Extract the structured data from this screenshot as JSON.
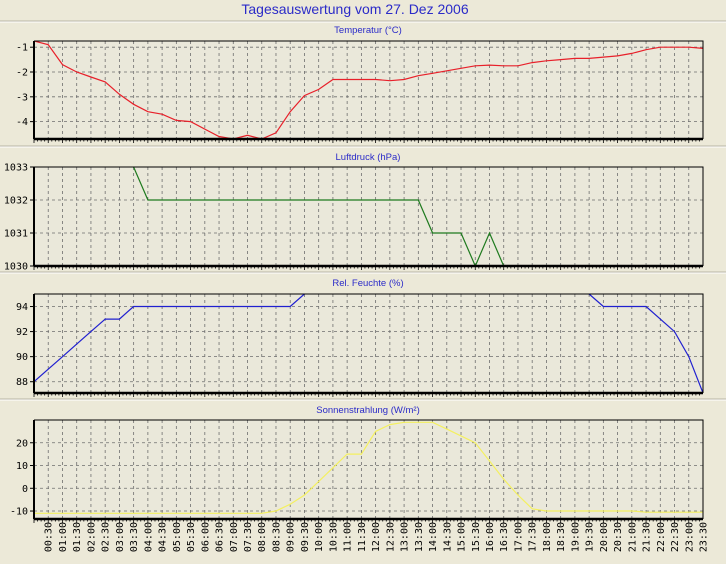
{
  "title": "Tagesauswertung vom 27. Dez 2006",
  "colors": {
    "background": "#ECE9D8",
    "plot_bg": "#EAE8DA",
    "title": "#2B2BC8"
  },
  "chart_data": {
    "x": [
      "00:00",
      "00:30",
      "01:00",
      "01:30",
      "02:00",
      "02:30",
      "03:00",
      "03:30",
      "04:00",
      "04:30",
      "05:00",
      "05:30",
      "06:00",
      "06:30",
      "07:00",
      "07:30",
      "08:00",
      "08:30",
      "09:00",
      "09:30",
      "10:00",
      "10:30",
      "11:00",
      "11:30",
      "12:00",
      "12:30",
      "13:00",
      "13:30",
      "14:00",
      "14:30",
      "15:00",
      "15:30",
      "16:00",
      "16:30",
      "17:00",
      "17:30",
      "18:00",
      "18:30",
      "19:00",
      "19:30",
      "20:00",
      "20:30",
      "21:00",
      "21:30",
      "22:00",
      "22:30",
      "23:00",
      "23:30"
    ],
    "x_tick_labels": [
      "00:30",
      "01:00",
      "01:30",
      "02:00",
      "02:30",
      "03:00",
      "03:30",
      "04:00",
      "04:30",
      "05:00",
      "05:30",
      "06:00",
      "06:30",
      "07:00",
      "07:30",
      "08:00",
      "08:30",
      "09:00",
      "09:30",
      "10:00",
      "10:30",
      "11:00",
      "11:30",
      "12:00",
      "12:30",
      "13:00",
      "13:30",
      "14:00",
      "14:30",
      "15:00",
      "15:30",
      "16:00",
      "16:30",
      "17:00",
      "17:30",
      "18:00",
      "18:30",
      "19:00",
      "19:30",
      "20:00",
      "20:30",
      "21:00",
      "21:30",
      "22:00",
      "22:30",
      "23:00",
      "23:30"
    ],
    "charts": [
      {
        "type": "line",
        "title": "Temperatur (°C)",
        "color": "#E8202A",
        "ylim": [
          -4.7,
          -0.75
        ],
        "yticks": [
          -1,
          -2,
          -3,
          -4
        ],
        "ytick_labels": [
          "-1",
          "-2",
          "-3",
          "-4"
        ],
        "grid": true,
        "values": [
          -0.75,
          -0.9,
          -1.7,
          -2.0,
          -2.2,
          -2.4,
          -2.9,
          -3.3,
          -3.6,
          -3.7,
          -3.95,
          -4.0,
          -4.3,
          -4.6,
          -4.7,
          -4.55,
          -4.7,
          -4.45,
          -3.6,
          -2.95,
          -2.7,
          -2.3,
          -2.3,
          -2.3,
          -2.3,
          -2.35,
          -2.3,
          -2.15,
          -2.05,
          -1.95,
          -1.85,
          -1.75,
          -1.72,
          -1.75,
          -1.75,
          -1.62,
          -1.55,
          -1.5,
          -1.45,
          -1.45,
          -1.4,
          -1.35,
          -1.25,
          -1.1,
          -1.0,
          -1.0,
          -1.0,
          -1.05
        ]
      },
      {
        "type": "line",
        "title": "Luftdruck (hPa)",
        "color": "#1E7A1E",
        "ylim": [
          1030,
          1033
        ],
        "yticks": [
          1033,
          1032,
          1031,
          1030
        ],
        "ytick_labels": [
          "1033",
          "1032",
          "1031",
          "1030"
        ],
        "grid": true,
        "values": [
          null,
          null,
          null,
          null,
          null,
          null,
          null,
          1033,
          1032,
          1032,
          1032,
          1032,
          1032,
          1032,
          1032,
          1032,
          1032,
          1032,
          1032,
          1032,
          1032,
          1032,
          1032,
          1032,
          1032,
          1032,
          1032,
          1032,
          1031,
          1031,
          1031,
          1030,
          1031,
          1030,
          null,
          null,
          null,
          null,
          null,
          null,
          null,
          null,
          null,
          null,
          null,
          null,
          null,
          null
        ]
      },
      {
        "type": "line",
        "title": "Rel. Feuchte (%)",
        "color": "#2020D0",
        "ylim": [
          87.1,
          95
        ],
        "yticks": [
          94,
          92,
          90,
          88
        ],
        "ytick_labels": [
          "94",
          "92",
          "90",
          "88"
        ],
        "grid": true,
        "values": [
          88,
          89,
          90,
          91,
          92,
          93,
          93,
          94,
          94,
          94,
          94,
          94,
          94,
          94,
          94,
          94,
          94,
          94,
          94,
          95,
          null,
          null,
          null,
          null,
          null,
          null,
          null,
          null,
          null,
          null,
          null,
          null,
          null,
          null,
          null,
          null,
          null,
          null,
          null,
          95,
          94,
          94,
          94,
          94,
          93,
          92,
          90,
          87.1
        ]
      },
      {
        "type": "line",
        "title": "Sonnenstrahlung (W/m²)",
        "color": "#F4F060",
        "ylim": [
          -13.5,
          30
        ],
        "yticks": [
          20,
          10,
          0,
          -10
        ],
        "ytick_labels": [
          "20",
          "10",
          "0",
          "-10"
        ],
        "grid": true,
        "values": [
          -11,
          -11,
          -11,
          -11,
          -11,
          -11,
          -11,
          -11,
          -11,
          -11,
          -11,
          -11,
          -11,
          -11,
          -11,
          -11,
          -11,
          -10,
          -7,
          -3,
          3,
          9,
          15,
          15,
          25,
          28,
          29,
          29,
          29,
          26,
          23,
          20,
          12,
          4,
          -3,
          -9,
          -10,
          -10,
          -10,
          -10,
          -10,
          -10,
          -10,
          -10.5,
          -10.5,
          -10.5,
          -10.5,
          -10.5
        ]
      }
    ]
  }
}
